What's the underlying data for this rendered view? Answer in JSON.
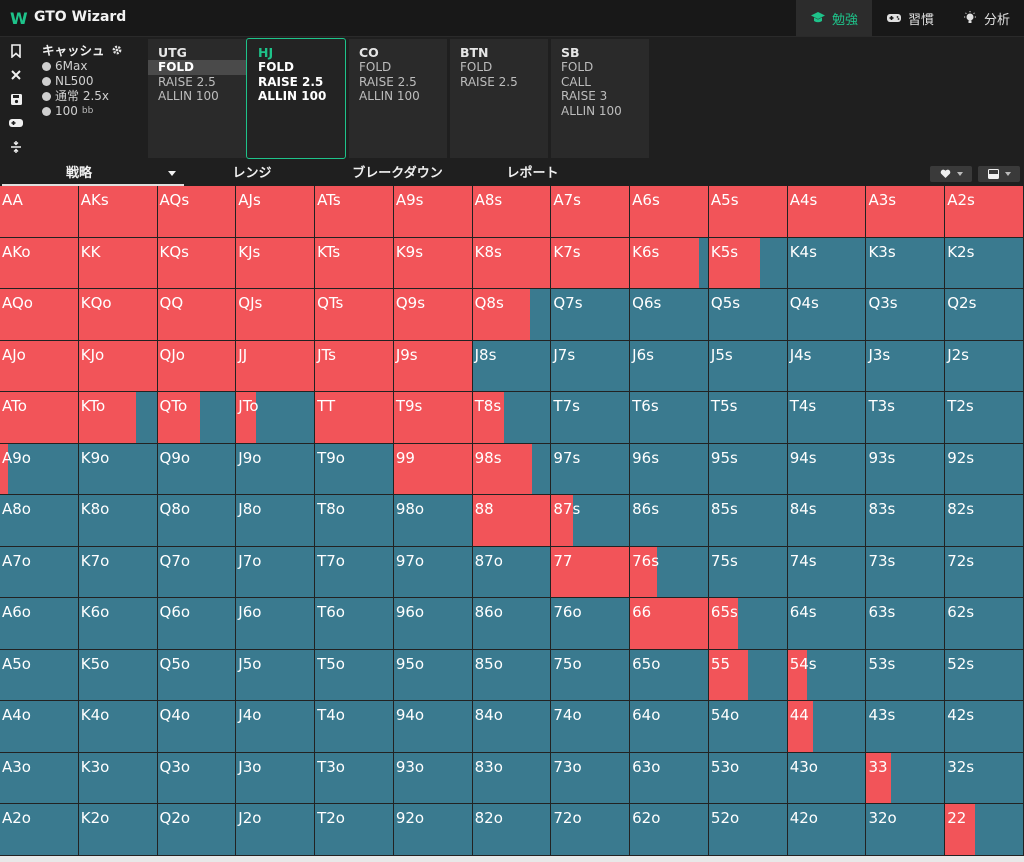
{
  "app": {
    "logo": "W",
    "title": "GTO Wizard"
  },
  "nav": [
    {
      "label": "勉強",
      "icon": "graduation-cap-icon",
      "active": true
    },
    {
      "label": "習慣",
      "icon": "gamepad-icon",
      "active": false
    },
    {
      "label": "分析",
      "icon": "lightbulb-icon",
      "active": false
    }
  ],
  "tools": [
    "bookmark-icon",
    "close-icon",
    "save-icon",
    "gamepad-icon",
    "split-icon"
  ],
  "settings": {
    "title": "キャッシュ",
    "rows": [
      "6Max",
      "NL500",
      "通常 2.5x",
      "100"
    ],
    "bb_unit": "bb"
  },
  "positions": [
    {
      "name": "UTG",
      "actions": [
        "FOLD",
        "RAISE 2.5",
        "ALLIN 100"
      ],
      "selected": "FOLD",
      "active": false
    },
    {
      "name": "HJ",
      "actions": [
        "FOLD",
        "RAISE 2.5",
        "ALLIN 100"
      ],
      "selected": "",
      "active": true
    },
    {
      "name": "CO",
      "actions": [
        "FOLD",
        "RAISE 2.5",
        "ALLIN 100"
      ],
      "selected": "",
      "active": false
    },
    {
      "name": "BTN",
      "actions": [
        "FOLD",
        "RAISE 2.5"
      ],
      "selected": "",
      "active": false
    },
    {
      "name": "SB",
      "actions": [
        "FOLD",
        "CALL",
        "RAISE 3",
        "ALLIN 100"
      ],
      "selected": "",
      "active": false
    }
  ],
  "tabs": [
    {
      "label": "戦略",
      "active": true
    },
    {
      "label": "レンジ",
      "active": false
    },
    {
      "label": "ブレークダウン",
      "active": false
    },
    {
      "label": "レポート",
      "active": false
    }
  ],
  "colors": {
    "raise": "#f25459",
    "fold": "#3a7a8f",
    "accent": "#1ec38a"
  },
  "grid": {
    "rows": [
      [
        "AA",
        "AKs",
        "AQs",
        "AJs",
        "ATs",
        "A9s",
        "A8s",
        "A7s",
        "A6s",
        "A5s",
        "A4s",
        "A3s",
        "A2s"
      ],
      [
        "AKo",
        "KK",
        "KQs",
        "KJs",
        "KTs",
        "K9s",
        "K8s",
        "K7s",
        "K6s",
        "K5s",
        "K4s",
        "K3s",
        "K2s"
      ],
      [
        "AQo",
        "KQo",
        "QQ",
        "QJs",
        "QTs",
        "Q9s",
        "Q8s",
        "Q7s",
        "Q6s",
        "Q5s",
        "Q4s",
        "Q3s",
        "Q2s"
      ],
      [
        "AJo",
        "KJo",
        "QJo",
        "JJ",
        "JTs",
        "J9s",
        "J8s",
        "J7s",
        "J6s",
        "J5s",
        "J4s",
        "J3s",
        "J2s"
      ],
      [
        "ATo",
        "KTo",
        "QTo",
        "JTo",
        "TT",
        "T9s",
        "T8s",
        "T7s",
        "T6s",
        "T5s",
        "T4s",
        "T3s",
        "T2s"
      ],
      [
        "A9o",
        "K9o",
        "Q9o",
        "J9o",
        "T9o",
        "99",
        "98s",
        "97s",
        "96s",
        "95s",
        "94s",
        "93s",
        "92s"
      ],
      [
        "A8o",
        "K8o",
        "Q8o",
        "J8o",
        "T8o",
        "98o",
        "88",
        "87s",
        "86s",
        "85s",
        "84s",
        "83s",
        "82s"
      ],
      [
        "A7o",
        "K7o",
        "Q7o",
        "J7o",
        "T7o",
        "97o",
        "87o",
        "77",
        "76s",
        "75s",
        "74s",
        "73s",
        "72s"
      ],
      [
        "A6o",
        "K6o",
        "Q6o",
        "J6o",
        "T6o",
        "96o",
        "86o",
        "76o",
        "66",
        "65s",
        "64s",
        "63s",
        "62s"
      ],
      [
        "A5o",
        "K5o",
        "Q5o",
        "J5o",
        "T5o",
        "95o",
        "85o",
        "75o",
        "65o",
        "55",
        "54s",
        "53s",
        "52s"
      ],
      [
        "A4o",
        "K4o",
        "Q4o",
        "J4o",
        "T4o",
        "94o",
        "84o",
        "74o",
        "64o",
        "54o",
        "44",
        "43s",
        "42s"
      ],
      [
        "A3o",
        "K3o",
        "Q3o",
        "J3o",
        "T3o",
        "93o",
        "83o",
        "73o",
        "63o",
        "53o",
        "43o",
        "33",
        "32s"
      ],
      [
        "A2o",
        "K2o",
        "Q2o",
        "J2o",
        "T2o",
        "92o",
        "82o",
        "72o",
        "62o",
        "52o",
        "42o",
        "32o",
        "22"
      ]
    ],
    "raise_freq": [
      [
        1,
        1,
        1,
        1,
        1,
        1,
        1,
        1,
        1,
        1,
        1,
        1,
        1
      ],
      [
        1,
        1,
        1,
        1,
        1,
        1,
        1,
        1,
        0.88,
        0.66,
        0,
        0,
        0
      ],
      [
        1,
        1,
        1,
        1,
        1,
        1,
        0.74,
        0,
        0,
        0,
        0,
        0,
        0
      ],
      [
        1,
        1,
        1,
        1,
        1,
        1,
        0,
        0,
        0,
        0,
        0,
        0,
        0
      ],
      [
        1,
        0.74,
        0.55,
        0.25,
        1,
        1,
        0.41,
        0,
        0,
        0,
        0,
        0,
        0
      ],
      [
        0.1,
        0,
        0,
        0,
        0,
        1,
        0.76,
        0,
        0,
        0,
        0,
        0,
        0
      ],
      [
        0,
        0,
        0,
        0,
        0,
        0,
        1,
        0.28,
        0,
        0,
        0,
        0,
        0
      ],
      [
        0,
        0,
        0,
        0,
        0,
        0,
        0,
        1,
        0.35,
        0,
        0,
        0,
        0
      ],
      [
        0,
        0,
        0,
        0,
        0,
        0,
        0,
        0,
        1,
        0.37,
        0,
        0,
        0
      ],
      [
        0,
        0,
        0,
        0,
        0,
        0,
        0,
        0,
        0,
        0.5,
        0.25,
        0,
        0
      ],
      [
        0,
        0,
        0,
        0,
        0,
        0,
        0,
        0,
        0,
        0,
        0.32,
        0,
        0
      ],
      [
        0,
        0,
        0,
        0,
        0,
        0,
        0,
        0,
        0,
        0,
        0,
        0.32,
        0
      ],
      [
        0,
        0,
        0,
        0,
        0,
        0,
        0,
        0,
        0,
        0,
        0,
        0,
        0.38
      ]
    ]
  }
}
